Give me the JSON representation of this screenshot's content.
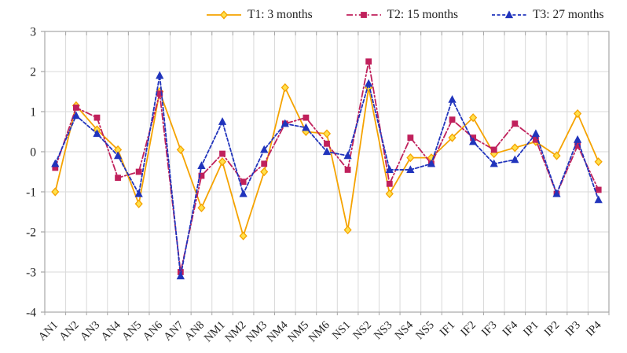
{
  "page": {
    "background": "#ffffff"
  },
  "chart_data": {
    "type": "line",
    "title": "",
    "xlabel": "",
    "ylabel": "",
    "categories": [
      "AN1",
      "AN2",
      "AN3",
      "AN4",
      "AN5",
      "AN6",
      "AN7",
      "AN8",
      "NM1",
      "NM2",
      "NM3",
      "NM4",
      "NM5",
      "NM6",
      "NS1",
      "NS2",
      "NS3",
      "NS4",
      "NS5",
      "IF1",
      "IF2",
      "IF3",
      "IF4",
      "IP1",
      "IP2",
      "IP3",
      "IP4"
    ],
    "series": [
      {
        "name": "T1: 3 months",
        "color": "#F5A300",
        "marker": "diamond",
        "marker_fill": "#FFE14D",
        "line_style": "solid",
        "values": [
          -1.0,
          1.15,
          0.55,
          0.05,
          -1.3,
          1.5,
          0.05,
          -1.4,
          -0.25,
          -2.1,
          -0.5,
          1.6,
          0.5,
          0.45,
          -1.95,
          1.6,
          -1.05,
          -0.15,
          -0.15,
          0.35,
          0.85,
          -0.05,
          0.1,
          0.25,
          -0.1,
          0.95,
          -0.25
        ]
      },
      {
        "name": "T2: 15 months",
        "color": "#C0215C",
        "marker": "square",
        "marker_fill": "#C0215C",
        "line_style": "dash-dot",
        "values": [
          -0.4,
          1.1,
          0.85,
          -0.65,
          -0.5,
          1.45,
          -3.0,
          -0.6,
          -0.05,
          -0.75,
          -0.3,
          0.7,
          0.85,
          0.2,
          -0.45,
          2.25,
          -0.8,
          0.35,
          -0.3,
          0.8,
          0.35,
          0.05,
          0.7,
          0.3,
          -1.05,
          0.15,
          -0.95
        ]
      },
      {
        "name": "T3: 27 months",
        "color": "#2134BC",
        "marker": "triangle",
        "marker_fill": "#2134BC",
        "line_style": "dashed",
        "values": [
          -0.3,
          0.9,
          0.45,
          -0.1,
          -1.05,
          1.9,
          -3.1,
          -0.35,
          0.75,
          -1.05,
          0.05,
          0.7,
          0.6,
          0.0,
          -0.1,
          1.7,
          -0.45,
          -0.45,
          -0.3,
          1.3,
          0.25,
          -0.3,
          -0.2,
          0.45,
          -1.05,
          0.3,
          -1.2
        ]
      }
    ],
    "ylim": [
      -4,
      3
    ],
    "yticks": [
      3,
      2,
      1,
      0,
      -1,
      -2,
      -3,
      -4
    ],
    "grid": true,
    "legend_position": "top",
    "axis_color": "#A6A6A6",
    "grid_color": "#D9D9D9",
    "text_color": "#1f1f1f"
  }
}
